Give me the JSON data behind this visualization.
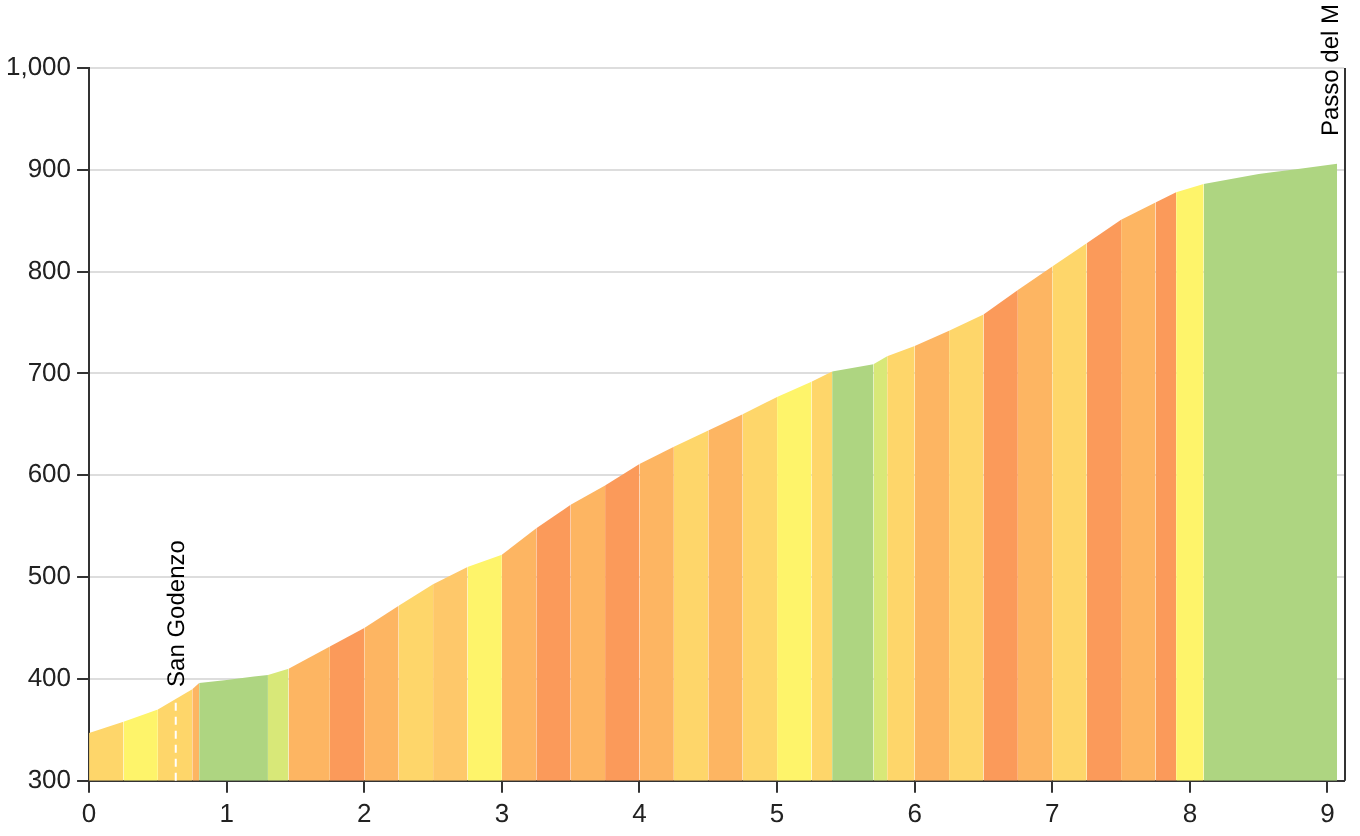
{
  "chart_data": {
    "type": "area",
    "series": [
      {
        "color": "#fed66a",
        "x": [
          0,
          0.25
        ],
        "values": [
          347,
          358
        ]
      },
      {
        "color": "#fef46a",
        "x": [
          0.25,
          0.5
        ],
        "values": [
          358,
          370
        ]
      },
      {
        "color": "#fed66a",
        "x": [
          0.5,
          0.75
        ],
        "values": [
          370,
          390
        ]
      },
      {
        "color": "#fdb562",
        "x": [
          0.75,
          0.8
        ],
        "values": [
          390,
          396
        ]
      },
      {
        "color": "#aed581",
        "x": [
          0.8,
          1.0,
          1.3
        ],
        "values": [
          396,
          399,
          404
        ]
      },
      {
        "color": "#d8e878",
        "x": [
          1.3,
          1.45
        ],
        "values": [
          404,
          410
        ]
      },
      {
        "color": "#fdb562",
        "x": [
          1.45,
          1.75
        ],
        "values": [
          410,
          432
        ]
      },
      {
        "color": "#fb9a5a",
        "x": [
          1.75,
          2.0
        ],
        "values": [
          432,
          450
        ]
      },
      {
        "color": "#fdb562",
        "x": [
          2.0,
          2.25
        ],
        "values": [
          450,
          472
        ]
      },
      {
        "color": "#fed66a",
        "x": [
          2.25,
          2.5
        ],
        "values": [
          472,
          493
        ]
      },
      {
        "color": "#fec86a",
        "x": [
          2.5,
          2.75
        ],
        "values": [
          493,
          510
        ]
      },
      {
        "color": "#fef46a",
        "x": [
          2.75,
          3.0
        ],
        "values": [
          510,
          522
        ]
      },
      {
        "color": "#fdb562",
        "x": [
          3.0,
          3.25
        ],
        "values": [
          522,
          548
        ]
      },
      {
        "color": "#fb9a5a",
        "x": [
          3.25,
          3.5
        ],
        "values": [
          548,
          571
        ]
      },
      {
        "color": "#fdb562",
        "x": [
          3.5,
          3.75
        ],
        "values": [
          571,
          590
        ]
      },
      {
        "color": "#fb9a5a",
        "x": [
          3.75,
          4.0
        ],
        "values": [
          590,
          611
        ]
      },
      {
        "color": "#fdb562",
        "x": [
          4.0,
          4.25
        ],
        "values": [
          611,
          628
        ]
      },
      {
        "color": "#fed66a",
        "x": [
          4.25,
          4.5
        ],
        "values": [
          628,
          644
        ]
      },
      {
        "color": "#fdb562",
        "x": [
          4.5,
          4.75
        ],
        "values": [
          644,
          660
        ]
      },
      {
        "color": "#fed66a",
        "x": [
          4.75,
          5.0
        ],
        "values": [
          660,
          677
        ]
      },
      {
        "color": "#fef46a",
        "x": [
          5.0,
          5.25
        ],
        "values": [
          677,
          692
        ]
      },
      {
        "color": "#fed66a",
        "x": [
          5.25,
          5.4
        ],
        "values": [
          692,
          702
        ]
      },
      {
        "color": "#aed581",
        "x": [
          5.4,
          5.7
        ],
        "values": [
          702,
          709
        ]
      },
      {
        "color": "#d8e878",
        "x": [
          5.7,
          5.8
        ],
        "values": [
          709,
          717
        ]
      },
      {
        "color": "#fed66a",
        "x": [
          5.8,
          6.0
        ],
        "values": [
          717,
          727
        ]
      },
      {
        "color": "#fdb562",
        "x": [
          6.0,
          6.25
        ],
        "values": [
          727,
          742
        ]
      },
      {
        "color": "#fed66a",
        "x": [
          6.25,
          6.5
        ],
        "values": [
          742,
          758
        ]
      },
      {
        "color": "#fb9a5a",
        "x": [
          6.5,
          6.75
        ],
        "values": [
          758,
          782
        ]
      },
      {
        "color": "#fdb562",
        "x": [
          6.75,
          7.0
        ],
        "values": [
          782,
          805
        ]
      },
      {
        "color": "#fed66a",
        "x": [
          7.0,
          7.25
        ],
        "values": [
          805,
          828
        ]
      },
      {
        "color": "#fb9a5a",
        "x": [
          7.25,
          7.5
        ],
        "values": [
          828,
          851
        ]
      },
      {
        "color": "#fdb562",
        "x": [
          7.5,
          7.75
        ],
        "values": [
          851,
          868
        ]
      },
      {
        "color": "#fb9a5a",
        "x": [
          7.75,
          7.9
        ],
        "values": [
          868,
          878
        ]
      },
      {
        "color": "#fef46a",
        "x": [
          7.9,
          8.1
        ],
        "values": [
          878,
          886
        ]
      },
      {
        "color": "#aed581",
        "x": [
          8.1,
          8.5,
          8.8,
          9.07
        ],
        "values": [
          886,
          896,
          901,
          906
        ]
      }
    ],
    "xlim": [
      0,
      9.12
    ],
    "xticks": [
      0,
      1,
      2,
      3,
      4,
      5,
      6,
      7,
      8,
      9
    ],
    "ylim": [
      300,
      1000
    ],
    "yticks": [
      300,
      400,
      500,
      600,
      700,
      800,
      900,
      {
        "value": 1000,
        "label": "1,000"
      }
    ],
    "grid": "y",
    "marker": "none",
    "ref_lines": [
      {
        "axis": "x",
        "value": 0.63,
        "label": "San Godenzo",
        "color": "#ffffff",
        "line_style": "dashed"
      }
    ],
    "annotations": [
      "Passo del M"
    ]
  }
}
